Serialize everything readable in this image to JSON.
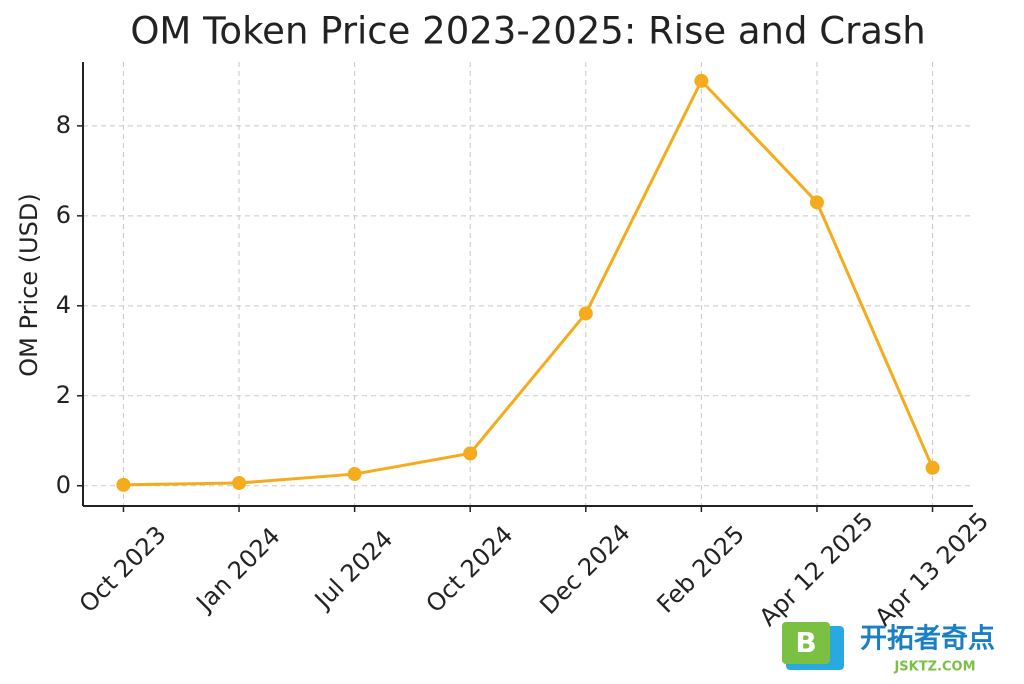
{
  "chart_data": {
    "type": "line",
    "title": "OM Token Price 2023-2025: Rise and Crash",
    "y_label": "OM Price (USD)",
    "categories": [
      "Oct 2023",
      "Jan 2024",
      "Jul 2024",
      "Oct 2024",
      "Dec 2024",
      "Feb 2025",
      "Apr 12 2025",
      "Apr 13 2025"
    ],
    "series": [
      {
        "name": "OM Price",
        "color": "#f4ac1c",
        "values": [
          0.02,
          0.06,
          0.26,
          0.72,
          3.83,
          9.0,
          6.3,
          0.4
        ]
      }
    ],
    "ylim": [
      -0.45,
      9.42
    ],
    "yticks": [
      0,
      2,
      4,
      6,
      8
    ],
    "grid": true
  },
  "watermark": {
    "logo": "B",
    "name": "开拓者奇点",
    "site": "JSKTZ.COM"
  }
}
